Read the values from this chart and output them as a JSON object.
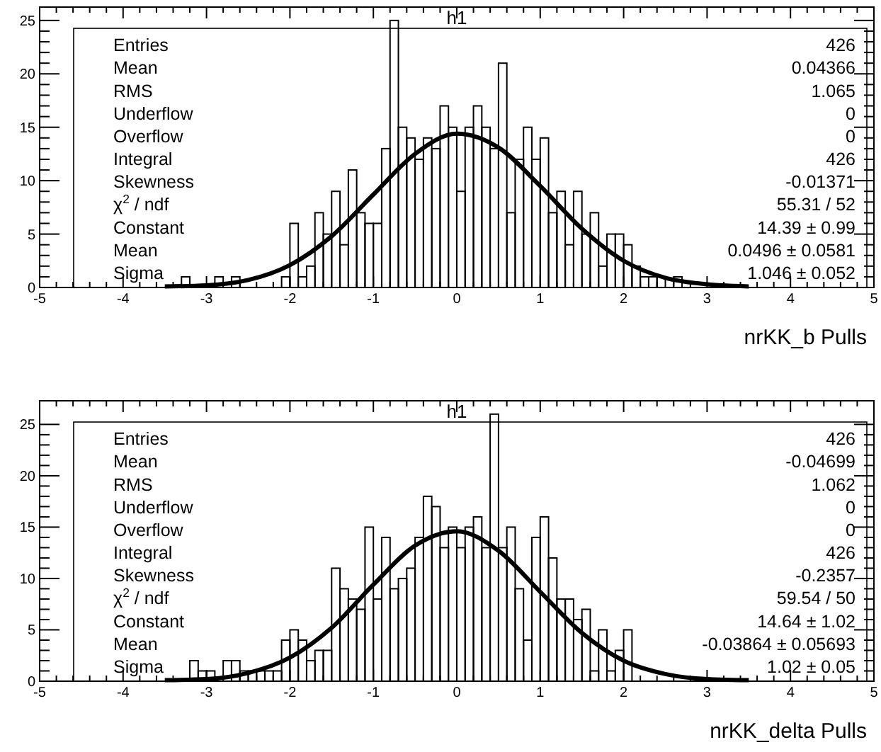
{
  "chart_data": [
    {
      "type": "histogram",
      "title": "h1",
      "xlabel": "nrKK_b Pulls",
      "xlim": [
        -5,
        5
      ],
      "ylim": [
        0,
        26.25
      ],
      "xticks": [
        -5,
        -4,
        -3,
        -2,
        -1,
        0,
        1,
        2,
        3,
        4,
        5
      ],
      "yticks": [
        0,
        5,
        10,
        15,
        20,
        25
      ],
      "series": [
        {
          "color": "#000000",
          "bins": [
            -3.5,
            -3.4,
            -3.3,
            -3.2,
            -3.1,
            -3.0,
            -2.9,
            -2.8,
            -2.7,
            -2.6,
            -2.5,
            -2.4,
            -2.3,
            -2.2,
            -2.1,
            -2.0,
            -1.9,
            -1.8,
            -1.7,
            -1.6,
            -1.5,
            -1.4,
            -1.3,
            -1.2,
            -1.1,
            -1.0,
            -0.9,
            -0.8,
            -0.7,
            -0.6,
            -0.5,
            -0.4,
            -0.3,
            -0.2,
            -0.1,
            0.0,
            0.1,
            0.2,
            0.3,
            0.4,
            0.5,
            0.6,
            0.7,
            0.8,
            0.9,
            1.0,
            1.1,
            1.2,
            1.3,
            1.4,
            1.5,
            1.6,
            1.7,
            1.8,
            1.9,
            2.0,
            2.1,
            2.2,
            2.3,
            2.4,
            2.5,
            2.6,
            2.7,
            2.8,
            2.9,
            3.0
          ],
          "values": [
            0,
            0,
            1,
            0,
            0,
            0,
            1,
            0,
            1,
            0,
            0,
            0,
            0,
            0,
            1,
            6,
            1,
            2,
            7,
            5,
            9,
            4,
            11,
            7,
            6,
            6,
            13,
            25,
            15,
            14,
            12,
            14,
            13,
            17,
            15,
            9,
            15,
            17,
            15,
            13,
            21,
            7,
            12,
            15,
            12,
            14,
            7,
            9,
            4,
            9,
            5,
            7,
            2,
            5,
            5,
            4,
            2,
            1,
            1,
            1,
            0,
            1,
            0,
            0,
            0
          ]
        },
        {
          "type": "line",
          "color": "#000000",
          "x": [
            -3.5,
            -3,
            -2.5,
            -2,
            -1.5,
            -1,
            -0.5,
            0,
            0.5,
            1,
            1.5,
            2,
            2.5,
            3,
            3.5
          ],
          "values": [
            0.1,
            0.2,
            0.7,
            2.1,
            4.8,
            8.7,
            12.5,
            14.4,
            13.1,
            9.5,
            5.5,
            2.5,
            0.9,
            0.3,
            0.1
          ]
        }
      ],
      "annotations": [
        "Entries",
        "426",
        "Mean",
        "0.04366",
        "RMS",
        "1.065",
        "Underflow",
        "0",
        "Overflow",
        "0",
        "Integral",
        "426",
        "Skewness",
        "-0.01371",
        "χ$^{2}$ / ndf",
        "55.31 / 52",
        "Constant",
        "14.39 ± 0.99",
        "Mean",
        "0.0496 ± 0.0581",
        "Sigma",
        "1.046 ± 0.052"
      ]
    },
    {
      "type": "histogram",
      "title": "h1",
      "xlabel": "nrKK_delta Pulls",
      "xlim": [
        -5,
        5
      ],
      "ylim": [
        0,
        27.3
      ],
      "xticks": [
        -5,
        -4,
        -3,
        -2,
        -1,
        0,
        1,
        2,
        3,
        4,
        5
      ],
      "yticks": [
        0,
        5,
        10,
        15,
        20,
        25
      ],
      "series": [
        {
          "color": "#000000",
          "bins": [
            -3.5,
            -3.4,
            -3.3,
            -3.2,
            -3.1,
            -3.0,
            -2.9,
            -2.8,
            -2.7,
            -2.6,
            -2.5,
            -2.4,
            -2.3,
            -2.2,
            -2.1,
            -2.0,
            -1.9,
            -1.8,
            -1.7,
            -1.6,
            -1.5,
            -1.4,
            -1.3,
            -1.2,
            -1.1,
            -1.0,
            -0.9,
            -0.8,
            -0.7,
            -0.6,
            -0.5,
            -0.4,
            -0.3,
            -0.2,
            -0.1,
            0.0,
            0.1,
            0.2,
            0.3,
            0.4,
            0.5,
            0.6,
            0.7,
            0.8,
            0.9,
            1.0,
            1.1,
            1.2,
            1.3,
            1.4,
            1.5,
            1.6,
            1.7,
            1.8,
            1.9,
            2.0,
            2.1,
            2.2,
            2.3,
            2.4,
            2.5
          ],
          "values": [
            0,
            0,
            0,
            2,
            1,
            1,
            0,
            2,
            2,
            1,
            1,
            1,
            1,
            1,
            4,
            5,
            4,
            2,
            3,
            3,
            11,
            9,
            8,
            7,
            15,
            8,
            14,
            9,
            10,
            11,
            14,
            18,
            17,
            13,
            15,
            13,
            15,
            16,
            13,
            26,
            13,
            15,
            9,
            4,
            14,
            16,
            12,
            8,
            8,
            6,
            7,
            1,
            5,
            1,
            3,
            5,
            0,
            0,
            0,
            0
          ]
        },
        {
          "type": "line",
          "color": "#000000",
          "x": [
            -3.5,
            -3,
            -2.5,
            -2,
            -1.5,
            -1,
            -0.5,
            0,
            0.5,
            1,
            1.5,
            2,
            2.5,
            3,
            3.5
          ],
          "values": [
            0.1,
            0.2,
            0.8,
            2.3,
            5.2,
            9.4,
            13.2,
            14.6,
            12.7,
            8.7,
            4.7,
            2.0,
            0.7,
            0.2,
            0.1
          ]
        }
      ],
      "annotations": [
        "Entries",
        "426",
        "Mean",
        "-0.04699",
        "RMS",
        "1.062",
        "Underflow",
        "0",
        "Overflow",
        "0",
        "Integral",
        "426",
        "Skewness",
        "-0.2357",
        "χ$^{2}$ / ndf",
        "59.54 / 50",
        "Constant",
        "14.64 ± 1.02",
        "Mean",
        "-0.03864 ± 0.05693",
        "Sigma",
        "1.02 ± 0.05"
      ]
    }
  ]
}
